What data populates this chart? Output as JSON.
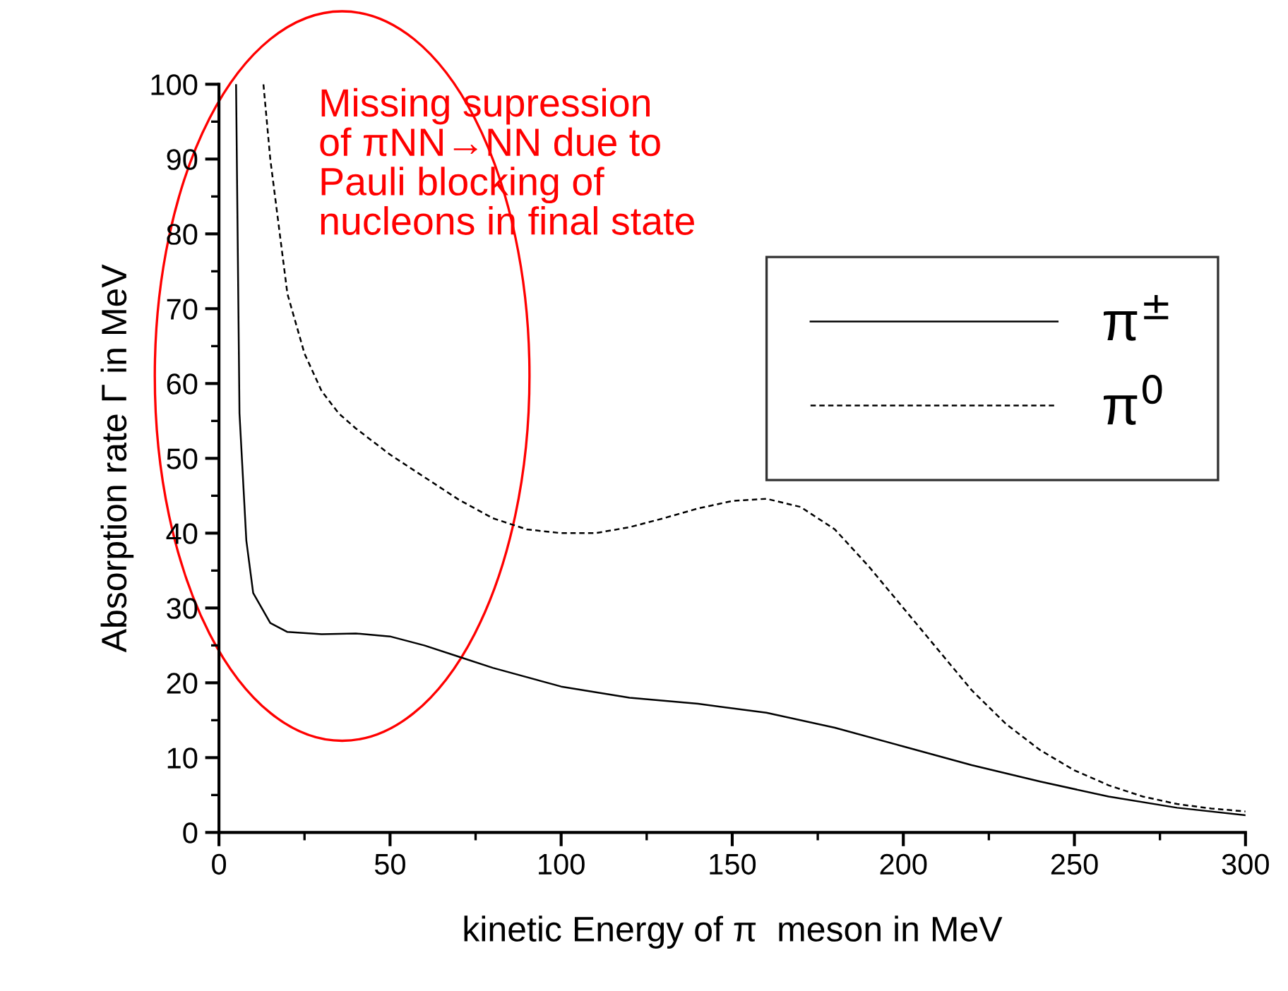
{
  "chart_data": {
    "type": "line",
    "xlabel": "kinetic Energy of π  meson in MeV",
    "ylabel": "Absorption rate Γ in MeV",
    "xlim": [
      0,
      300
    ],
    "ylim": [
      0,
      100
    ],
    "xticks": [
      0,
      50,
      100,
      150,
      200,
      250,
      300
    ],
    "yticks": [
      0,
      10,
      20,
      30,
      40,
      50,
      60,
      70,
      80,
      90,
      100
    ],
    "grid": false,
    "legend": "right",
    "marker": "none",
    "annotations": [
      "Missing supression\nof πNN→NN due to\nPauli blocking of\nnucleons in final state"
    ],
    "series": [
      {
        "name": "π$^{±}$",
        "color": "#000000",
        "line_style": "solid",
        "x": [
          5,
          6,
          8,
          10,
          15,
          20,
          30,
          40,
          50,
          60,
          70,
          80,
          100,
          120,
          140,
          160,
          180,
          200,
          220,
          240,
          260,
          280,
          300
        ],
        "values": [
          100,
          56,
          39,
          32,
          28,
          26.8,
          26.5,
          26.6,
          26.2,
          25,
          23.5,
          22,
          19.5,
          18,
          17.2,
          16,
          14,
          11.5,
          9,
          6.8,
          4.8,
          3.3,
          2.3
        ]
      },
      {
        "name": "π$^{0}$",
        "color": "#000000",
        "line_style": "dashed",
        "x": [
          13,
          15,
          20,
          25,
          30,
          35,
          40,
          50,
          60,
          70,
          80,
          90,
          100,
          110,
          120,
          130,
          140,
          150,
          160,
          170,
          180,
          190,
          200,
          210,
          220,
          230,
          240,
          250,
          260,
          270,
          280,
          290,
          300
        ],
        "values": [
          100,
          90,
          72,
          64,
          59,
          56,
          54,
          50.5,
          47.5,
          44.5,
          42,
          40.5,
          40,
          40,
          40.8,
          42,
          43.3,
          44.3,
          44.6,
          43.5,
          40.5,
          35.5,
          30,
          24.5,
          19,
          14.5,
          11,
          8.3,
          6.3,
          4.8,
          3.8,
          3.2,
          2.8
        ]
      }
    ]
  }
}
